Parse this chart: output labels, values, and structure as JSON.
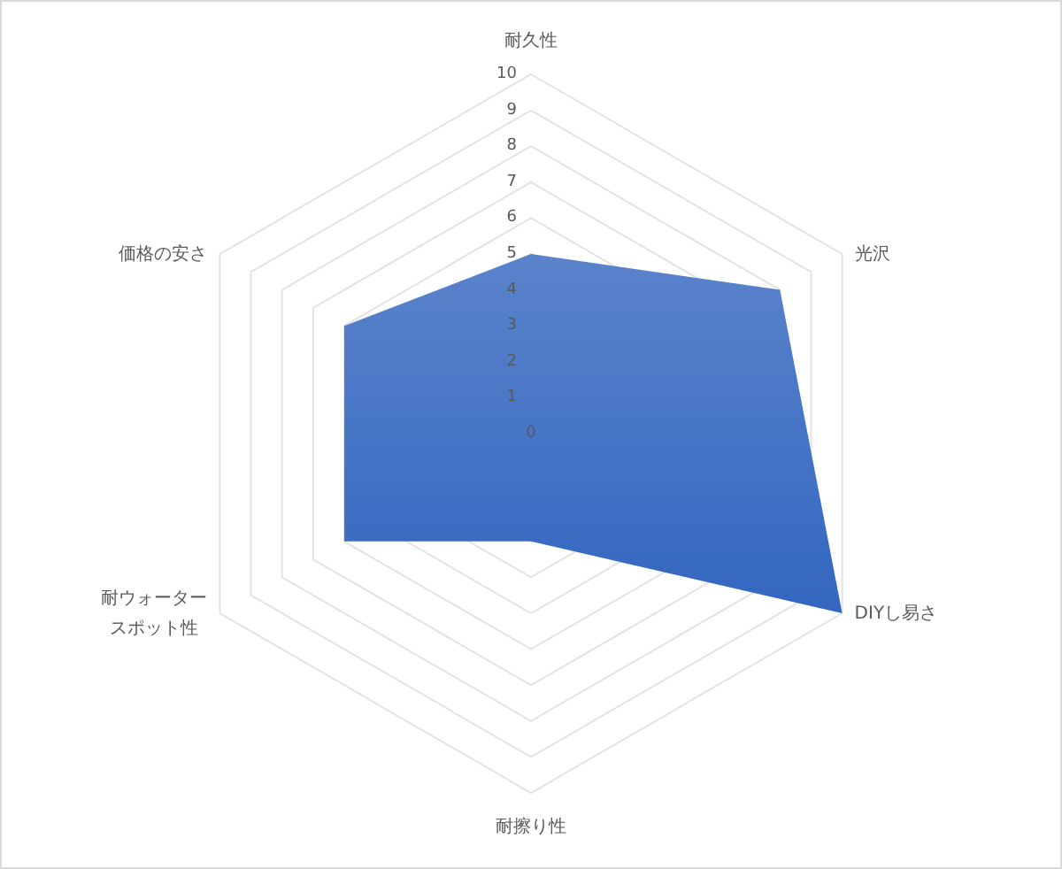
{
  "chart_data": {
    "type": "radar",
    "categories": [
      "耐久性",
      "光沢",
      "DIYし易さ",
      "耐擦り性",
      "耐ウォータースポット性",
      "価格の安さ"
    ],
    "series": [
      {
        "color": "#4472c4",
        "values": [
          5,
          8,
          10,
          3,
          6,
          6
        ]
      }
    ],
    "ylim": [
      0,
      10
    ],
    "yticks": [
      0,
      1,
      2,
      3,
      4,
      5,
      6,
      7,
      8,
      9,
      10
    ],
    "grid": true
  }
}
